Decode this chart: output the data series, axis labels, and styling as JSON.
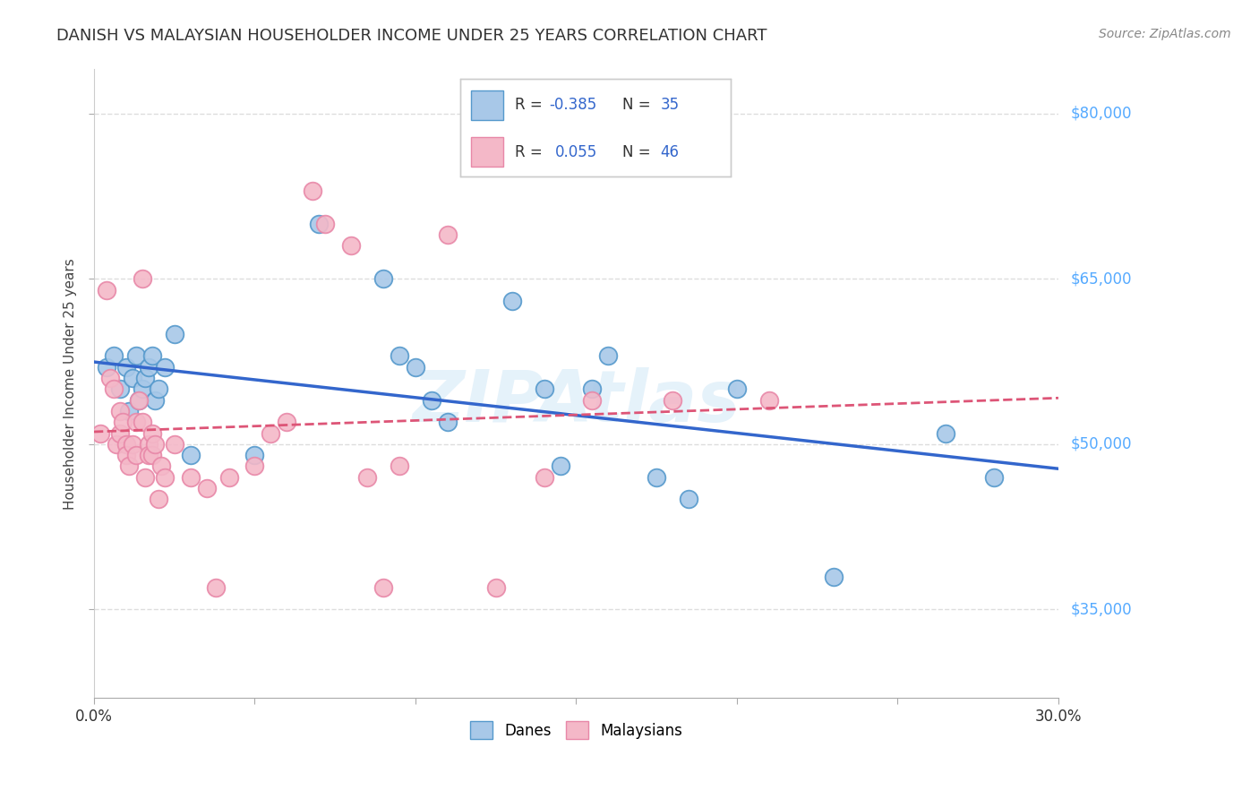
{
  "title": "DANISH VS MALAYSIAN HOUSEHOLDER INCOME UNDER 25 YEARS CORRELATION CHART",
  "source": "Source: ZipAtlas.com",
  "ylabel": "Householder Income Under 25 years",
  "xlim": [
    0.0,
    0.3
  ],
  "ylim": [
    27000,
    84000
  ],
  "xtick_values": [
    0.0,
    0.05,
    0.1,
    0.15,
    0.2,
    0.25,
    0.3
  ],
  "ytick_values": [
    35000,
    50000,
    65000,
    80000
  ],
  "ytick_labels": [
    "$35,000",
    "$50,000",
    "$65,000",
    "$80,000"
  ],
  "danes_color": "#a8c8e8",
  "malaysians_color": "#f4b8c8",
  "danes_edge": "#5599cc",
  "malaysians_edge": "#e888a8",
  "trend_danes_color": "#3366cc",
  "trend_malaysians_color": "#dd5577",
  "danes_R": -0.385,
  "danes_N": 35,
  "malaysians_R": 0.055,
  "malaysians_N": 46,
  "danes_x": [
    0.004,
    0.006,
    0.008,
    0.01,
    0.011,
    0.012,
    0.013,
    0.014,
    0.015,
    0.016,
    0.017,
    0.018,
    0.019,
    0.02,
    0.022,
    0.025,
    0.03,
    0.05,
    0.07,
    0.09,
    0.095,
    0.1,
    0.105,
    0.11,
    0.13,
    0.14,
    0.145,
    0.155,
    0.16,
    0.175,
    0.185,
    0.2,
    0.23,
    0.265,
    0.28
  ],
  "danes_y": [
    57000,
    58000,
    55000,
    57000,
    53000,
    56000,
    58000,
    54000,
    55000,
    56000,
    57000,
    58000,
    54000,
    55000,
    57000,
    60000,
    49000,
    49000,
    70000,
    65000,
    58000,
    57000,
    54000,
    52000,
    63000,
    55000,
    48000,
    55000,
    58000,
    47000,
    45000,
    55000,
    38000,
    51000,
    47000
  ],
  "malaysians_x": [
    0.002,
    0.004,
    0.005,
    0.006,
    0.007,
    0.008,
    0.008,
    0.009,
    0.01,
    0.01,
    0.011,
    0.012,
    0.013,
    0.013,
    0.014,
    0.015,
    0.015,
    0.016,
    0.017,
    0.017,
    0.018,
    0.018,
    0.019,
    0.02,
    0.021,
    0.022,
    0.025,
    0.03,
    0.035,
    0.038,
    0.042,
    0.05,
    0.055,
    0.06,
    0.068,
    0.072,
    0.08,
    0.085,
    0.09,
    0.095,
    0.11,
    0.125,
    0.14,
    0.155,
    0.18,
    0.21
  ],
  "malaysians_y": [
    51000,
    64000,
    56000,
    55000,
    50000,
    53000,
    51000,
    52000,
    50000,
    49000,
    48000,
    50000,
    52000,
    49000,
    54000,
    65000,
    52000,
    47000,
    50000,
    49000,
    49000,
    51000,
    50000,
    45000,
    48000,
    47000,
    50000,
    47000,
    46000,
    37000,
    47000,
    48000,
    51000,
    52000,
    73000,
    70000,
    68000,
    47000,
    37000,
    48000,
    69000,
    37000,
    47000,
    54000,
    54000,
    54000
  ],
  "watermark": "ZIPAtlas",
  "background_color": "#ffffff",
  "grid_color": "#dddddd",
  "right_label_color": "#55aaff",
  "legend_text_color": "#3366cc",
  "legend_label_color": "#333333"
}
